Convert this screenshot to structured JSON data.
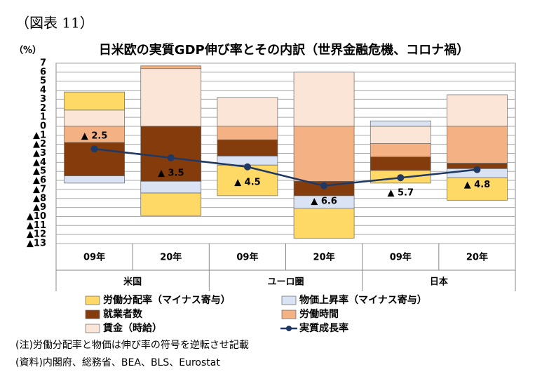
{
  "chart_data": {
    "type": "bar",
    "figure_label": "（図表 11）",
    "y_unit": "（%）",
    "title": "日米欧の実質GDP伸び率とその内訳（世界金融危機、コロナ禍）",
    "categories": [
      "09年",
      "20年",
      "09年",
      "20年",
      "09年",
      "20年"
    ],
    "groups": [
      "米国",
      "ユーロ圏",
      "日本"
    ],
    "series": [
      {
        "name": "労働分配率（マイナス寄与）",
        "color": "#ffd966",
        "values": [
          2.0,
          -2.5,
          -3.4,
          -3.3,
          -1.4,
          -2.5
        ]
      },
      {
        "name": "物価上昇率（マイナス寄与）",
        "color": "#dae3f3",
        "values": [
          -0.8,
          -1.3,
          -1.0,
          -1.4,
          0.6,
          -1.0
        ]
      },
      {
        "name": "就業者数",
        "color": "#843c0c",
        "values": [
          -3.7,
          -6.1,
          -1.8,
          -1.6,
          -1.5,
          -0.6
        ]
      },
      {
        "name": "労働時間",
        "color": "#f4b183",
        "values": [
          -1.8,
          0.3,
          -1.5,
          -6.1,
          -1.5,
          -4.1
        ]
      },
      {
        "name": "賃金（時給）",
        "color": "#fbe5d6",
        "values": [
          1.8,
          6.4,
          3.2,
          6.0,
          -1.9,
          3.5
        ]
      },
      {
        "name": "実質成長率",
        "color": "#1f3864",
        "type": "line",
        "values": [
          -2.5,
          -3.5,
          -4.5,
          -6.6,
          -5.7,
          -4.8
        ],
        "value_labels": [
          "▲ 2.5",
          "▲ 3.5",
          "▲ 4.5",
          "▲ 6.6",
          "▲ 5.7",
          "▲ 4.8"
        ]
      }
    ],
    "ylim": [
      -13,
      7
    ],
    "yticks": [
      7,
      6,
      5,
      4,
      3,
      2,
      1,
      0,
      {
        "value": -1,
        "label": "▲1"
      },
      {
        "value": -2,
        "label": "▲2"
      },
      {
        "value": -3,
        "label": "▲3"
      },
      {
        "value": -4,
        "label": "▲4"
      },
      {
        "value": -5,
        "label": "▲5"
      },
      {
        "value": -6,
        "label": "▲6"
      },
      {
        "value": -7,
        "label": "▲7"
      },
      {
        "value": -8,
        "label": "▲8"
      },
      {
        "value": -9,
        "label": "▲9"
      },
      {
        "value": -10,
        "label": "▲10"
      },
      {
        "value": -11,
        "label": "▲11"
      },
      {
        "value": -12,
        "label": "▲12"
      },
      {
        "value": -13,
        "label": "▲13"
      }
    ],
    "grid": true,
    "notes": [
      "(注)労働分配率と物価は伸び率の符号を逆転させ記載",
      "(資料)内閣府、総務省、BEA、BLS、Eurostat"
    ]
  }
}
